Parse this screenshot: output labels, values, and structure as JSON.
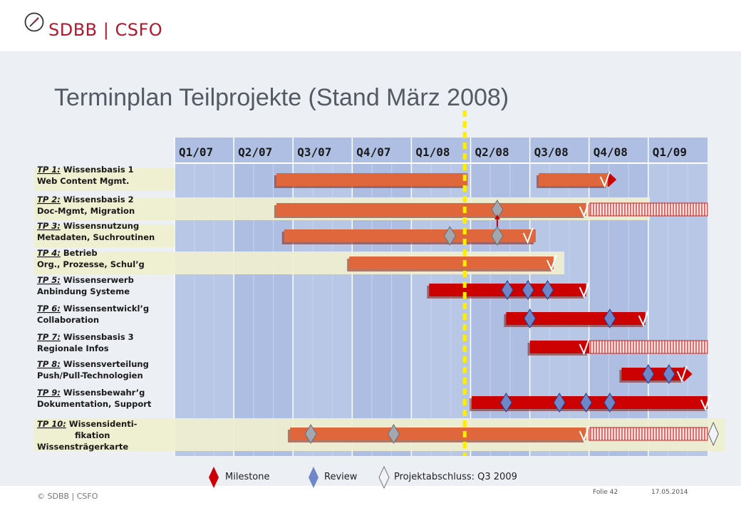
{
  "brand": {
    "name": "SDBB | CSFO",
    "accent_color": "#b0182e",
    "logo_icon": "compass-icon"
  },
  "slide": {
    "title": "Terminplan Teilprojekte (Stand März 2008)"
  },
  "quarters": [
    "Q1/07",
    "Q2/07",
    "Q3/07",
    "Q4/07",
    "Q1/08",
    "Q2/08",
    "Q3/08",
    "Q4/08",
    "Q1/09"
  ],
  "status_line": {
    "position_quarters": 4.9,
    "color": "#ffee00"
  },
  "colors": {
    "label_band": "#efefcf",
    "grid_even": "#b9c7e6",
    "grid_odd": "#aebee2",
    "bar_orange": "#e0663c",
    "bar_red": "#cc0000",
    "milestone": "#cc0000",
    "review": "#6f87c9",
    "review_grey": "#a2a7b0",
    "end_marker": "#f1f3f6"
  },
  "projects": [
    {
      "code": "TP 1:",
      "name": "Wissensbasis 1",
      "sub": "Web Content Mgmt.",
      "band": true,
      "bars": [
        {
          "start": 1.72,
          "end": 4.95,
          "color": "orange"
        },
        {
          "start": 6.15,
          "end": 7.32,
          "color": "orange",
          "arrow": true
        }
      ],
      "checks": [
        7.3
      ],
      "reviews": [],
      "reviews_grey": [],
      "hatch": null,
      "end": null
    },
    {
      "code": "TP 2:",
      "name": "Wissensbasis 2",
      "sub": "Doc-Mgmt, Migration",
      "band": true,
      "bars": [
        {
          "start": 1.72,
          "end": 6.95,
          "color": "orange"
        }
      ],
      "checks": [
        6.95
      ],
      "reviews": [],
      "reviews_grey": [
        5.45
      ],
      "hatch": [
        7.0,
        9.0
      ],
      "end": null
    },
    {
      "code": "TP 3:",
      "name": "Wissensnutzung",
      "sub": "Metadaten, Suchroutinen",
      "band": true,
      "bars": [
        {
          "start": 1.85,
          "end": 6.1,
          "color": "orange"
        }
      ],
      "checks": [
        6.0
      ],
      "reviews": [],
      "reviews_grey": [
        4.65,
        5.45
      ],
      "hatch": null,
      "end": null
    },
    {
      "code": "TP 4:",
      "name": "Betrieb",
      "sub": "Org., Prozesse, Schul’g",
      "band": true,
      "bars": [
        {
          "start": 2.95,
          "end": 6.4,
          "color": "orange"
        }
      ],
      "checks": [
        6.4
      ],
      "reviews": [],
      "reviews_grey": [],
      "hatch": null,
      "end": null
    },
    {
      "code": "TP 5:",
      "name": "Wissenserwerb",
      "sub": "Anbindung  Systeme",
      "band": false,
      "bars": [
        {
          "start": 4.3,
          "end": 6.95,
          "color": "red"
        }
      ],
      "checks": [
        6.95
      ],
      "reviews": [
        5.62,
        5.97,
        6.3
      ],
      "reviews_grey": [],
      "hatch": null,
      "end": null
    },
    {
      "code": "TP 6:",
      "name": "Wissensentwickl’g",
      "sub": "Collaboration",
      "band": false,
      "bars": [
        {
          "start": 5.6,
          "end": 7.95,
          "color": "red"
        }
      ],
      "checks": [
        7.95
      ],
      "reviews": [
        6.0,
        7.35
      ],
      "reviews_grey": [],
      "hatch": null,
      "end": null
    },
    {
      "code": "TP 7:",
      "name": "Wissensbasis 3",
      "sub": "Regionale Infos",
      "band": false,
      "bars": [
        {
          "start": 6.0,
          "end": 7.0,
          "color": "red"
        }
      ],
      "checks": [
        6.95
      ],
      "reviews": [],
      "reviews_grey": [],
      "hatch": [
        7.0,
        9.0
      ],
      "end": null
    },
    {
      "code": "TP 8:",
      "name": "Wissensverteilung",
      "sub": "Push/Pull-Technologien",
      "band": false,
      "bars": [
        {
          "start": 7.55,
          "end": 8.6,
          "color": "red",
          "arrow": true
        }
      ],
      "checks": [
        8.6
      ],
      "reviews": [
        8.0,
        8.35
      ],
      "reviews_grey": [],
      "hatch": null,
      "end": null
    },
    {
      "code": "TP 9:",
      "name": "Wissensbewahr’g",
      "sub": "Dokumentation, Support",
      "band": false,
      "bars": [
        {
          "start": 5.02,
          "end": 9.0,
          "color": "red"
        }
      ],
      "checks": [
        9.0
      ],
      "reviews": [
        5.6,
        6.5,
        6.95,
        7.35
      ],
      "reviews_grey": [],
      "hatch": null,
      "end": null
    },
    {
      "code": "TP 10:",
      "name": "Wissensidenti-",
      "sub": "fikation",
      "sub2": "Wissensträgerkarte",
      "band": true,
      "bars": [
        {
          "start": 1.95,
          "end": 6.95,
          "color": "orange"
        }
      ],
      "checks": [
        6.95
      ],
      "reviews": [],
      "reviews_grey": [
        2.3,
        3.7
      ],
      "hatch": [
        7.0,
        9.0
      ],
      "end": 9.1
    }
  ],
  "legend": {
    "milestone": "Milestone",
    "review": "Review",
    "end": "Projektabschluss: Q3 2009"
  },
  "footer": {
    "copyright": "© SDBB | CSFO",
    "folie": "Folie 42",
    "date": "17.05.2014"
  }
}
